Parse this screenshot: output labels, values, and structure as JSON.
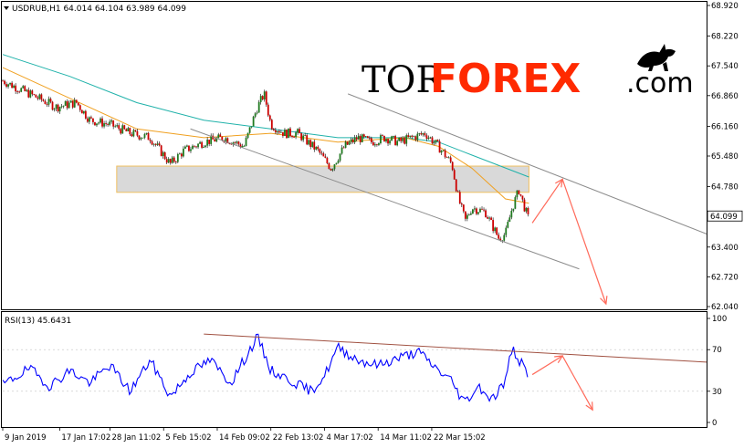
{
  "chart_data": [
    {
      "type": "candlestick",
      "symbol_header": "USDRUB,H1  64.014 64.104 63.989 64.099",
      "ylim": [
        62.04,
        68.92
      ],
      "y_ticks": [
        "68.920",
        "68.220",
        "67.540",
        "66.860",
        "66.160",
        "65.480",
        "64.780",
        "64.099",
        "63.400",
        "62.720",
        "62.040"
      ],
      "x_tick_labels": [
        "9 Jan 2019",
        "17 Jan 17:02",
        "28 Jan 11:02",
        "5 Feb 15:02",
        "14 Feb 09:02",
        "22 Feb 13:02",
        "4 Mar 17:02",
        "14 Mar 11:02",
        "22 Mar 15:02"
      ],
      "current_price": "64.099",
      "close_path": [
        [
          0,
          67.2
        ],
        [
          8,
          66.9
        ],
        [
          16,
          66.6
        ],
        [
          22,
          66.7
        ],
        [
          26,
          66.3
        ],
        [
          32,
          66.2
        ],
        [
          38,
          66.0
        ],
        [
          44,
          65.9
        ],
        [
          50,
          65.3
        ],
        [
          54,
          65.6
        ],
        [
          60,
          65.8
        ],
        [
          66,
          65.9
        ],
        [
          72,
          65.7
        ],
        [
          76,
          66.6
        ],
        [
          78,
          66.9
        ],
        [
          80,
          66.2
        ],
        [
          84,
          66.0
        ],
        [
          88,
          66.0
        ],
        [
          94,
          65.6
        ],
        [
          98,
          65.2
        ],
        [
          102,
          65.7
        ],
        [
          106,
          65.9
        ],
        [
          110,
          65.8
        ],
        [
          114,
          65.9
        ],
        [
          118,
          65.8
        ],
        [
          122,
          65.9
        ],
        [
          126,
          66.0
        ],
        [
          130,
          65.7
        ],
        [
          134,
          65.3
        ],
        [
          136,
          64.5
        ],
        [
          138,
          64.0
        ],
        [
          140,
          64.3
        ],
        [
          144,
          64.2
        ],
        [
          148,
          63.6
        ],
        [
          150,
          63.7
        ],
        [
          152,
          64.3
        ],
        [
          154,
          64.7
        ],
        [
          157,
          64.0
        ]
      ],
      "moving_averages": {
        "ma_teal": [
          [
            0,
            67.8
          ],
          [
            20,
            67.3
          ],
          [
            40,
            66.7
          ],
          [
            60,
            66.3
          ],
          [
            80,
            66.1
          ],
          [
            100,
            65.9
          ],
          [
            120,
            65.9
          ],
          [
            130,
            65.8
          ],
          [
            140,
            65.5
          ],
          [
            157,
            65.0
          ]
        ],
        "ma_orange": [
          [
            0,
            67.5
          ],
          [
            20,
            66.8
          ],
          [
            40,
            66.1
          ],
          [
            60,
            65.9
          ],
          [
            80,
            66.0
          ],
          [
            100,
            65.8
          ],
          [
            120,
            65.9
          ],
          [
            130,
            65.7
          ],
          [
            140,
            65.2
          ],
          [
            150,
            64.5
          ],
          [
            157,
            64.4
          ]
        ]
      },
      "support_zone": {
        "from": 64.65,
        "to": 65.25
      },
      "channel_upper": [
        [
          103,
          66.9
        ],
        [
          210,
          63.7
        ]
      ],
      "channel_lower": [
        [
          56,
          66.1
        ],
        [
          172,
          62.9
        ]
      ],
      "projection_up": [
        [
          158,
          63.95
        ],
        [
          167,
          64.95
        ]
      ],
      "projection_down": [
        [
          167,
          64.95
        ],
        [
          180,
          62.1
        ]
      ],
      "colors": {
        "bull_candle": "#1f7a1f",
        "bear_candle": "#cc0000",
        "ma_teal": "#20b2aa",
        "ma_orange": "#f0a020",
        "channel": "#8c8c8c",
        "zone_fill": "#d9d9d9",
        "zone_border": "#f0c060",
        "projection": "#ff6a5a"
      }
    },
    {
      "type": "line",
      "header": "RSI(13) 45.6431",
      "ylim": [
        0,
        100
      ],
      "y_ticks": [
        "100",
        "70",
        "30",
        "0"
      ],
      "series": [
        {
          "values": [
            [
              0,
              36
            ],
            [
              8,
              52
            ],
            [
              14,
              35
            ],
            [
              20,
              50
            ],
            [
              26,
              38
            ],
            [
              32,
              55
            ],
            [
              38,
              30
            ],
            [
              44,
              60
            ],
            [
              50,
              25
            ],
            [
              56,
              48
            ],
            [
              62,
              60
            ],
            [
              68,
              38
            ],
            [
              76,
              82
            ],
            [
              80,
              50
            ],
            [
              86,
              40
            ],
            [
              92,
              30
            ],
            [
              96,
              45
            ],
            [
              100,
              72
            ],
            [
              106,
              60
            ],
            [
              112,
              55
            ],
            [
              118,
              62
            ],
            [
              124,
              68
            ],
            [
              130,
              50
            ],
            [
              134,
              40
            ],
            [
              136,
              28
            ],
            [
              138,
              20
            ],
            [
              142,
              35
            ],
            [
              146,
              22
            ],
            [
              150,
              40
            ],
            [
              152,
              72
            ],
            [
              154,
              60
            ],
            [
              157,
              46
            ]
          ]
        }
      ],
      "trendline": [
        [
          60,
          85
        ],
        [
          210,
          58
        ]
      ],
      "projection_up": [
        [
          158,
          46
        ],
        [
          167,
          64
        ]
      ],
      "projection_down": [
        [
          167,
          64
        ],
        [
          176,
          12
        ]
      ],
      "colors": {
        "rsi": "#0000ff",
        "trend": "#a05040",
        "projection": "#ff6a5a"
      }
    }
  ],
  "logo": {
    "tor": "TOR",
    "forex": "FOREX",
    "com": ".com"
  }
}
